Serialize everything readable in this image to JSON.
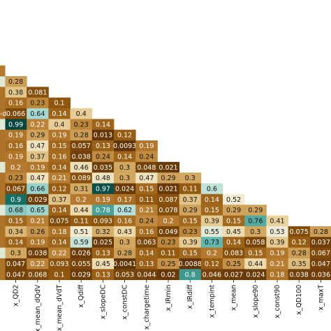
{
  "chart_data": {
    "type": "heatmap",
    "layout": "lower-triangle correlation matrix, cropped view",
    "x_labels": [
      "x_QD2",
      "x_mean_dQdV",
      "x_mean_dVdT",
      "x_Qdiff",
      "x_slopeDC",
      "x_constDC",
      "x_chargetime",
      "x_IRmin",
      "x_IRdiff",
      "x_tempint",
      "x_mean",
      "x_slope90",
      "x_const90",
      "x_QD100",
      "x_maxT"
    ],
    "partial_row_label": "-d",
    "rows": [
      [
        0.28
      ],
      [
        0.38,
        0.081
      ],
      [
        0.16,
        0.23,
        0.1
      ],
      [
        0.066,
        0.64,
        0.14,
        0.4
      ],
      [
        0.99,
        0.22,
        0.4,
        0.23,
        0.14
      ],
      [
        0.19,
        0.29,
        0.19,
        0.28,
        0.013,
        0.12
      ],
      [
        0.16,
        0.47,
        0.15,
        0.057,
        0.13,
        0.0093,
        0.19
      ],
      [
        0.19,
        0.37,
        0.16,
        0.038,
        0.24,
        0.14,
        0.24
      ],
      [
        0.2,
        0.19,
        0.14,
        0.46,
        0.035,
        0.3,
        0.048,
        0.021
      ],
      [
        0.23,
        0.47,
        0.21,
        0.089,
        0.48,
        0.3,
        0.47,
        0.29,
        0.3
      ],
      [
        0.067,
        0.66,
        0.12,
        0.31,
        0.97,
        0.024,
        0.15,
        0.021,
        0.11,
        0.6
      ],
      [
        0.9,
        0.029,
        0.37,
        0.2,
        0.19,
        0.17,
        0.11,
        0.087,
        0.37,
        0.14,
        0.52
      ],
      [
        0.68,
        0.65,
        0.14,
        0.44,
        0.78,
        0.62,
        0.21,
        0.078,
        0.29,
        0.15,
        0.29,
        0.29
      ],
      [
        0.15,
        0.21,
        0.075,
        0.11,
        0.093,
        0.16,
        0.24,
        0.2,
        0.15,
        0.39,
        0.15,
        0.76,
        0.41
      ],
      [
        0.34,
        0.26,
        0.18,
        0.51,
        0.32,
        0.43,
        0.16,
        0.049,
        0.23,
        0.55,
        0.45,
        0.3,
        0.53,
        0.075,
        0.28
      ],
      [
        0.14,
        0.19,
        0.14,
        0.59,
        0.025,
        0.3,
        0.063,
        0.23,
        0.39,
        0.73,
        0.14,
        0.058,
        0.39,
        0.12,
        0.037
      ],
      [
        0.3,
        0.038,
        0.22,
        0.026,
        0.13,
        0.28,
        0.14,
        0.11,
        0.15,
        0.2,
        0.083,
        0.15,
        0.19,
        0.28,
        0.067
      ],
      [
        0.047,
        0.22,
        0.093,
        0.055,
        0.45,
        0.0041,
        0.13,
        0.25,
        0.0088,
        0.12,
        0.25,
        0.44,
        0.21,
        0.35,
        0.047
      ],
      [
        0.047,
        0.068,
        0.1,
        0.029,
        0.13,
        0.053,
        0.044,
        0.02,
        0.8,
        0.046,
        0.027,
        0.024,
        0.18,
        0.038,
        0.036
      ]
    ],
    "left_edge_tick_fragments": {
      "3": "-d"
    }
  },
  "colors": {
    "scale": [
      [
        0.0,
        "#5e3102"
      ],
      [
        0.1,
        "#8f560d"
      ],
      [
        0.2,
        "#b57a2d"
      ],
      [
        0.3,
        "#d2a75f"
      ],
      [
        0.42,
        "#ebd6a2"
      ],
      [
        0.52,
        "#f3ebd4"
      ],
      [
        0.62,
        "#b3e0da"
      ],
      [
        0.74,
        "#5db3aa"
      ],
      [
        0.86,
        "#1f7f75"
      ],
      [
        1.0,
        "#01433a"
      ]
    ],
    "light_text": "#ffffff",
    "dark_text": "#111111"
  }
}
